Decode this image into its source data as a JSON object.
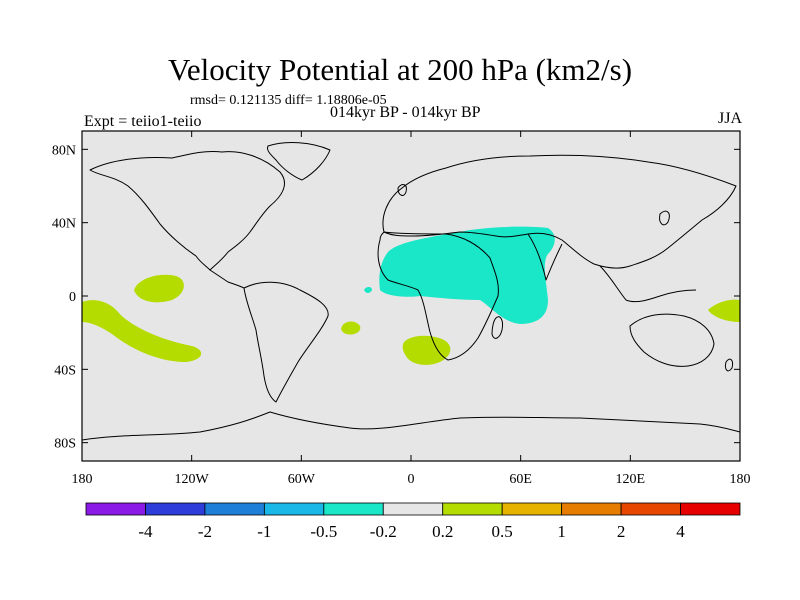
{
  "title": "Velocity Potential at 200 hPa (km2/s)",
  "stats": "rmsd= 0.121135  diff= 1.18806e-05",
  "subtitle": "014kyr BP - 014kyr BP",
  "experiment": "Expt = teiio1-teiio",
  "season": "JJA",
  "lat_ticks": [
    "80N",
    "40N",
    "0",
    "40S",
    "80S"
  ],
  "lon_ticks": [
    "180",
    "120W",
    "60W",
    "0",
    "60E",
    "120E",
    "180"
  ],
  "colorbar": {
    "colors": [
      "#8c1ae6",
      "#2e3cd9",
      "#1e7fd9",
      "#1ab8e6",
      "#1ae6c8",
      "#e6e6e6",
      "#b4dc00",
      "#e6b400",
      "#e67d00",
      "#e64600",
      "#e60000"
    ],
    "labels": [
      "-4",
      "-2",
      "-1",
      "-0.5",
      "-0.2",
      "0.2",
      "0.5",
      "1",
      "2",
      "4"
    ]
  },
  "colors": {
    "background": "#e6e6e6",
    "positive": "#b4dc00",
    "negative": "#1ae6c8"
  }
}
